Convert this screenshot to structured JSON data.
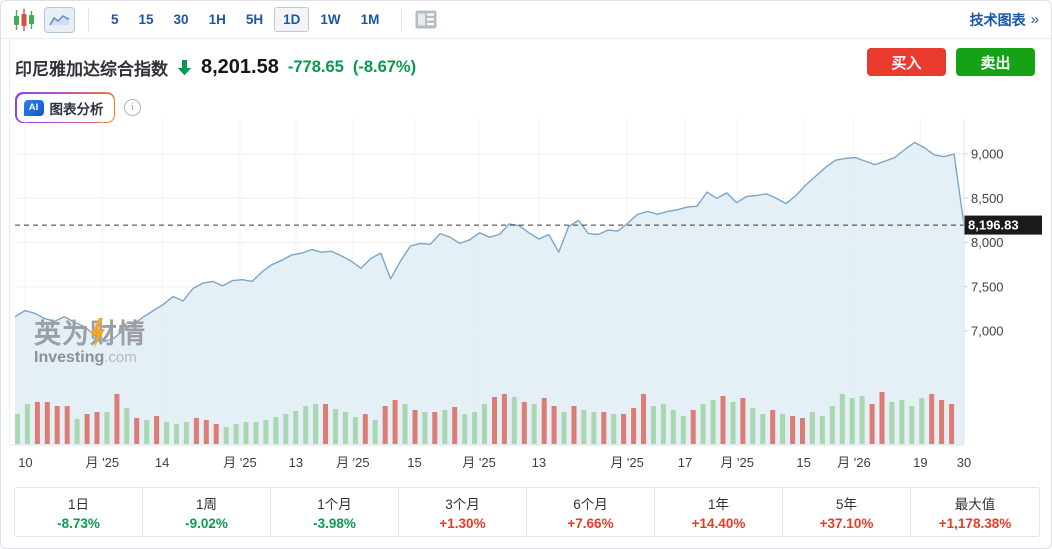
{
  "toolbar": {
    "timeframes": [
      "5",
      "15",
      "30",
      "1H",
      "5H",
      "1D",
      "1W",
      "1M"
    ],
    "selected_timeframe": "1D",
    "technical_chart_label": "技术图表",
    "technical_chart_arrow": "»"
  },
  "header": {
    "title": "印尼雅加达综合指数",
    "price": "8,201.58",
    "change": "-778.65",
    "change_pct": "(-8.67%)"
  },
  "trade": {
    "buy_label": "买入",
    "sell_label": "卖出"
  },
  "ai": {
    "badge": "AI",
    "label": "图表分析"
  },
  "watermark": {
    "cn": "英为财情",
    "en": "Investing",
    "domain": ".com"
  },
  "colors": {
    "down_green": "#089950",
    "up_red": "#ea3a27",
    "buy_bg": "#e83a2d",
    "sell_bg": "#16a216",
    "line": "#78a6ce",
    "fill": "#e2edf5",
    "vol_green": "#a8d7b1",
    "vol_red": "#dd7b75",
    "toolbar_blue": "#1a57a8",
    "tag_bg": "#1a1a1a"
  },
  "chart_data": {
    "type": "area",
    "title": "印尼雅加达综合指数 1D",
    "grid": true,
    "y_ticks": [
      {
        "label": "9,000",
        "value": 9000
      },
      {
        "label": "8,500",
        "value": 8500
      },
      {
        "label": "8,000",
        "value": 8000
      },
      {
        "label": "7,500",
        "value": 7500
      },
      {
        "label": "7,000",
        "value": 7000
      }
    ],
    "last_price": 8196.83,
    "last_price_label": "8,196.83",
    "x_labels": [
      {
        "t": "10",
        "f": 0.011
      },
      {
        "t": "月 '25",
        "f": 0.092
      },
      {
        "t": "14",
        "f": 0.155
      },
      {
        "t": "月 '25",
        "f": 0.237
      },
      {
        "t": "13",
        "f": 0.296
      },
      {
        "t": "月 '25",
        "f": 0.356
      },
      {
        "t": "15",
        "f": 0.421
      },
      {
        "t": "月 '25",
        "f": 0.489
      },
      {
        "t": "13",
        "f": 0.552
      },
      {
        "t": "月 '25",
        "f": 0.645
      },
      {
        "t": "17",
        "f": 0.706
      },
      {
        "t": "月 '25",
        "f": 0.761
      },
      {
        "t": "15",
        "f": 0.831
      },
      {
        "t": "月 '26",
        "f": 0.884
      },
      {
        "t": "19",
        "f": 0.954
      },
      {
        "t": "30",
        "f": 1.0
      }
    ],
    "prices": [
      7160,
      7230,
      7200,
      7140,
      7110,
      7160,
      7100,
      7050,
      6960,
      6880,
      6920,
      7010,
      7080,
      7160,
      7230,
      7300,
      7390,
      7340,
      7480,
      7540,
      7560,
      7510,
      7570,
      7580,
      7560,
      7670,
      7750,
      7800,
      7860,
      7880,
      7920,
      7890,
      7900,
      7850,
      7790,
      7710,
      7820,
      7880,
      7590,
      7790,
      7960,
      7990,
      7980,
      8100,
      8060,
      7990,
      8030,
      8110,
      8060,
      8090,
      8210,
      8190,
      8110,
      8040,
      8090,
      7890,
      8180,
      8250,
      8100,
      8090,
      8140,
      8130,
      8220,
      8320,
      8350,
      8320,
      8350,
      8370,
      8400,
      8410,
      8570,
      8500,
      8560,
      8450,
      8520,
      8530,
      8550,
      8500,
      8440,
      8530,
      8650,
      8750,
      8850,
      8930,
      8950,
      8960,
      8920,
      8880,
      8920,
      8960,
      9050,
      9130,
      9070,
      8990,
      8970,
      9000,
      8196.83
    ],
    "volume": {
      "heights": [
        30,
        40,
        42,
        42,
        38,
        38,
        25,
        30,
        32,
        32,
        50,
        36,
        26,
        24,
        28,
        22,
        20,
        22,
        26,
        24,
        20,
        17,
        20,
        22,
        22,
        24,
        27,
        30,
        33,
        38,
        40,
        40,
        35,
        32,
        27,
        30,
        24,
        38,
        44,
        40,
        34,
        32,
        32,
        34,
        37,
        30,
        32,
        40,
        47,
        50,
        47,
        42,
        40,
        46,
        38,
        32,
        38,
        34,
        32,
        32,
        30,
        30,
        36,
        50,
        38,
        40,
        34,
        28,
        34,
        40,
        44,
        48,
        42,
        46,
        36,
        30,
        34,
        30,
        28,
        26,
        32,
        28,
        38,
        50,
        46,
        48,
        40,
        52,
        42,
        44,
        38,
        46,
        50,
        44,
        40
      ],
      "colors": [
        "g",
        "g",
        "r",
        "r",
        "r",
        "r",
        "g",
        "r",
        "r",
        "g",
        "r",
        "g",
        "r",
        "g",
        "r",
        "g",
        "g",
        "g",
        "r",
        "r",
        "r",
        "g",
        "g",
        "g",
        "g",
        "g",
        "g",
        "g",
        "g",
        "g",
        "g",
        "r",
        "g",
        "g",
        "g",
        "r",
        "g",
        "r",
        "r",
        "g",
        "r",
        "g",
        "r",
        "g",
        "r",
        "g",
        "g",
        "g",
        "r",
        "r",
        "g",
        "r",
        "g",
        "r",
        "r",
        "g",
        "r",
        "g",
        "g",
        "r",
        "g",
        "r",
        "r",
        "r",
        "g",
        "g",
        "g",
        "g",
        "r",
        "g",
        "g",
        "r",
        "g",
        "r",
        "g",
        "g",
        "r",
        "g",
        "r",
        "r",
        "g",
        "g",
        "g",
        "g",
        "g",
        "g",
        "r",
        "r",
        "g",
        "g",
        "g",
        "g",
        "r",
        "r",
        "r"
      ]
    }
  },
  "performance": {
    "cells": [
      {
        "label": "1日",
        "value": "-8.73%",
        "dir": "down"
      },
      {
        "label": "1周",
        "value": "-9.02%",
        "dir": "down"
      },
      {
        "label": "1个月",
        "value": "-3.98%",
        "dir": "down"
      },
      {
        "label": "3个月",
        "value": "+1.30%",
        "dir": "up"
      },
      {
        "label": "6个月",
        "value": "+7.66%",
        "dir": "up"
      },
      {
        "label": "1年",
        "value": "+14.40%",
        "dir": "up"
      },
      {
        "label": "5年",
        "value": "+37.10%",
        "dir": "up"
      },
      {
        "label": "最大值",
        "value": "+1,178.38%",
        "dir": "up"
      }
    ]
  }
}
